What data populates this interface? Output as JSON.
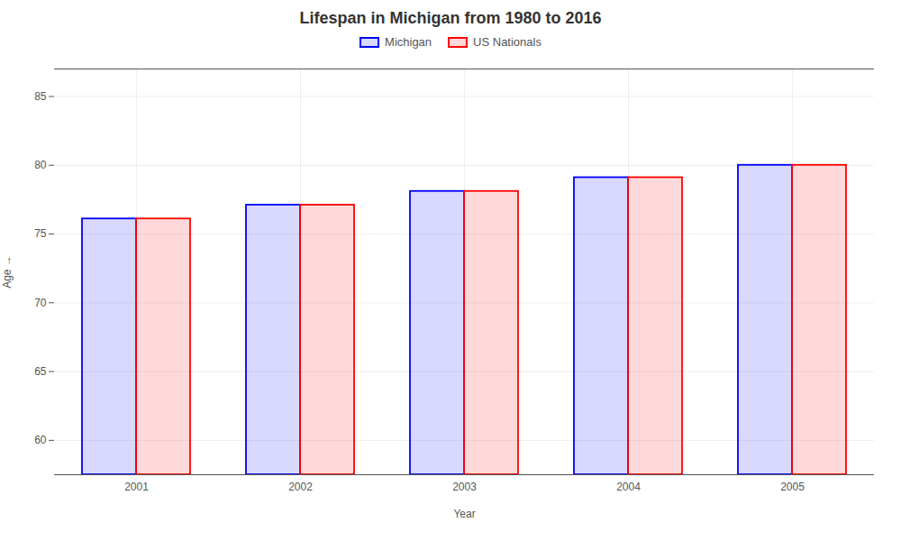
{
  "chart_data": {
    "type": "bar",
    "title": "Lifespan in Michigan from 1980 to 2016",
    "xlabel": "Year",
    "ylabel": "Age",
    "categories": [
      "2001",
      "2002",
      "2003",
      "2004",
      "2005"
    ],
    "series": [
      {
        "name": "Michigan",
        "color": "#0000ff",
        "values": [
          76.1,
          77.1,
          78.1,
          79.1,
          80.0
        ]
      },
      {
        "name": "US Nationals",
        "color": "#ff0000",
        "values": [
          76.1,
          77.1,
          78.1,
          79.1,
          80.0
        ]
      }
    ],
    "ylim": [
      57.5,
      87
    ],
    "yticks": [
      60,
      65,
      70,
      75,
      80,
      85
    ],
    "grid": true,
    "legend": "upper center"
  }
}
